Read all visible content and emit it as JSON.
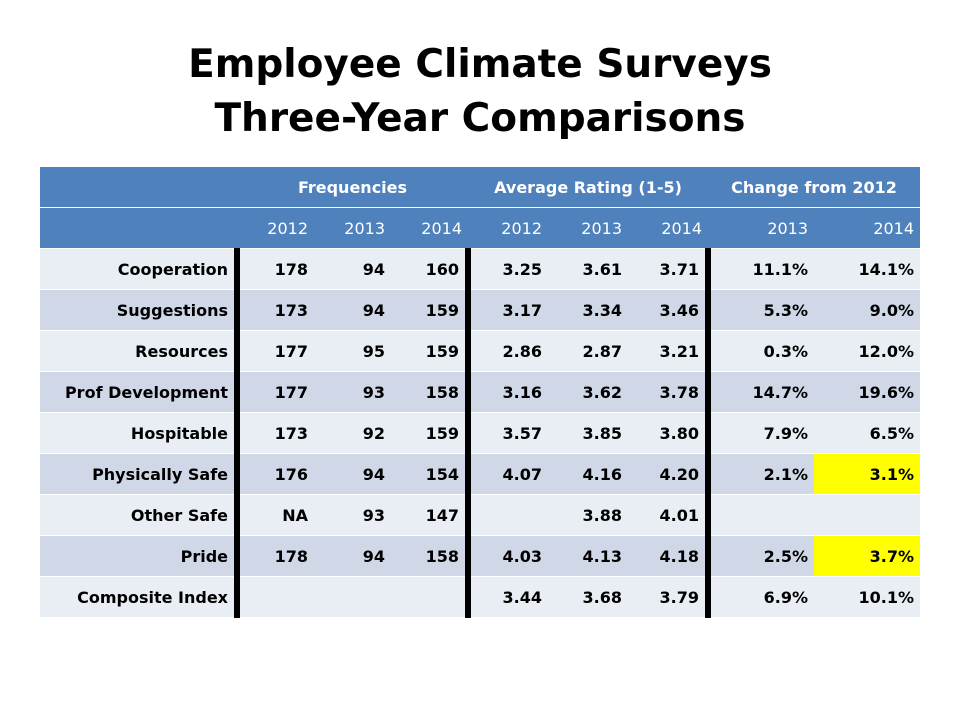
{
  "title": {
    "line1": "Employee Climate Surveys",
    "line2": "Three-Year Comparisons"
  },
  "table": {
    "group_headers": [
      "",
      "Frequencies",
      "Average Rating (1-5)",
      "Change from 2012"
    ],
    "year_headers": [
      "",
      "2012",
      "2013",
      "2014",
      "2012",
      "2013",
      "2014",
      "2013",
      "2014"
    ],
    "rows": [
      {
        "label": "Cooperation",
        "cells": [
          "178",
          "94",
          "160",
          "3.25",
          "3.61",
          "3.71",
          "11.1%",
          "14.1%"
        ]
      },
      {
        "label": "Suggestions",
        "cells": [
          "173",
          "94",
          "159",
          "3.17",
          "3.34",
          "3.46",
          "5.3%",
          "9.0%"
        ]
      },
      {
        "label": "Resources",
        "cells": [
          "177",
          "95",
          "159",
          "2.86",
          "2.87",
          "3.21",
          "0.3%",
          "12.0%"
        ]
      },
      {
        "label": "Prof Development",
        "cells": [
          "177",
          "93",
          "158",
          "3.16",
          "3.62",
          "3.78",
          "14.7%",
          "19.6%"
        ]
      },
      {
        "label": "Hospitable",
        "cells": [
          "173",
          "92",
          "159",
          "3.57",
          "3.85",
          "3.80",
          "7.9%",
          "6.5%"
        ]
      },
      {
        "label": "Physically Safe",
        "cells": [
          "176",
          "94",
          "154",
          "4.07",
          "4.16",
          "4.20",
          "2.1%",
          "3.1%"
        ]
      },
      {
        "label": "Other Safe",
        "cells": [
          "NA",
          "93",
          "147",
          "",
          "3.88",
          "4.01",
          "",
          ""
        ]
      },
      {
        "label": "Pride",
        "cells": [
          "178",
          "94",
          "158",
          "4.03",
          "4.13",
          "4.18",
          "2.5%",
          "3.7%"
        ]
      },
      {
        "label": "Composite Index",
        "cells": [
          "",
          "",
          "",
          "3.44",
          "3.68",
          "3.79",
          "6.9%",
          "10.1%"
        ]
      }
    ],
    "highlight_color": "#ffff00",
    "header_color": "#4f81bd",
    "row_colors": [
      "#e9edf4",
      "#d0d8e8"
    ]
  }
}
